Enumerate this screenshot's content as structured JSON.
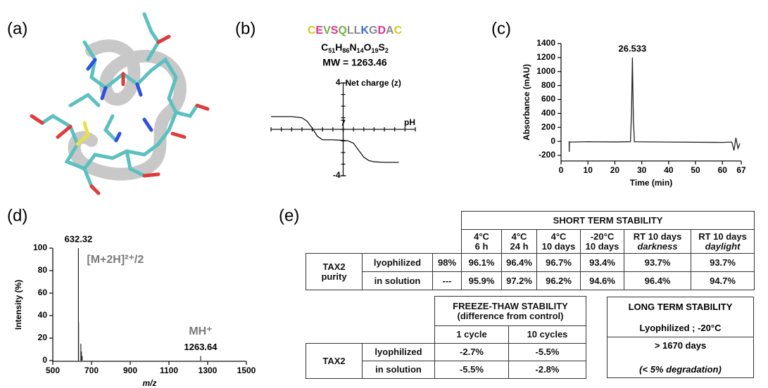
{
  "panel_labels": [
    "(a)",
    "(b)",
    "(c)",
    "(d)",
    "(e)"
  ],
  "sequence": [
    {
      "letter": "C",
      "color": "#d6c81c"
    },
    {
      "letter": "E",
      "color": "#e0308f"
    },
    {
      "letter": "V",
      "color": "#6cb33f"
    },
    {
      "letter": "S",
      "color": "#e0308f"
    },
    {
      "letter": "Q",
      "color": "#6cb33f"
    },
    {
      "letter": "L",
      "color": "#8a8a8a"
    },
    {
      "letter": "L",
      "color": "#8a8a8a"
    },
    {
      "letter": "K",
      "color": "#3a6fd0"
    },
    {
      "letter": "G",
      "color": "#8a8a8a"
    },
    {
      "letter": "D",
      "color": "#e0308f"
    },
    {
      "letter": "A",
      "color": "#8a8a8a"
    },
    {
      "letter": "C",
      "color": "#d6c81c"
    }
  ],
  "formula": [
    {
      "element": "C",
      "count": 51
    },
    {
      "element": "H",
      "count": 86
    },
    {
      "element": "N",
      "count": 14
    },
    {
      "element": "O",
      "count": 19
    },
    {
      "element": "S",
      "count": 2
    }
  ],
  "mw": "MW = 1263.46",
  "chart_data": [
    {
      "type": "line",
      "y_label": "Net charge (z)",
      "x_label": "pH",
      "xlim": [
        0,
        14
      ],
      "ylim": [
        -4,
        4
      ],
      "xticks": [
        7
      ],
      "yticks": [
        4,
        -4
      ],
      "x": [
        0,
        2,
        3,
        3.5,
        4,
        4.5,
        5,
        6,
        7,
        7.5,
        8,
        8.5,
        9,
        9.5,
        10,
        11,
        12.4
      ],
      "values": [
        1.1,
        1.1,
        1.0,
        0.7,
        0.1,
        -0.6,
        -0.9,
        -0.9,
        -0.95,
        -1.0,
        -1.2,
        -1.8,
        -2.4,
        -2.7,
        -2.8,
        -2.85,
        -2.85
      ],
      "color": "#111111"
    },
    {
      "type": "line",
      "y_label": "Absorbance (mAU)",
      "x_label": "Time (min)",
      "xlim": [
        0,
        67
      ],
      "ylim": [
        -200,
        1400
      ],
      "xticks": [
        0,
        10,
        20,
        30,
        40,
        50,
        60,
        67
      ],
      "yticks": [
        -200,
        0,
        200,
        400,
        600,
        800,
        1000,
        1200,
        1400
      ],
      "x": [
        3,
        3.05,
        3.1,
        10,
        20,
        25.8,
        26.2,
        26.533,
        26.9,
        27.3,
        40,
        60,
        63.5,
        64.3,
        65,
        65.8,
        66.5
      ],
      "values": [
        0,
        -150,
        -10,
        -5,
        -8,
        -5,
        400,
        1200,
        300,
        -5,
        -10,
        -15,
        -10,
        -130,
        50,
        -100,
        -30
      ],
      "peak_label": "26.533",
      "color": "#222222"
    },
    {
      "type": "stem",
      "y_label": "Intensity (%)",
      "x_label": "m/z",
      "xlim": [
        500,
        1500
      ],
      "ylim": [
        0,
        100
      ],
      "xticks": [
        500,
        700,
        900,
        1100,
        1300,
        1500
      ],
      "yticks": [
        0,
        20,
        40,
        60,
        80,
        100
      ],
      "x": [
        632.32,
        633.3,
        645,
        648,
        652,
        1263.64
      ],
      "values": [
        100,
        34,
        15,
        8,
        4,
        4
      ],
      "peak_labels": [
        "632.32",
        "1263.64"
      ],
      "ion_labels": [
        "[M+2H]²⁺/2",
        "MH⁺"
      ],
      "color": "#222222"
    }
  ],
  "short_term": {
    "title": "SHORT TERM STABILITY",
    "columns": [
      [
        "4°C",
        "6 h"
      ],
      [
        "4°C",
        "24 h"
      ],
      [
        "4°C",
        "10 days"
      ],
      [
        "-20°C",
        "10 days"
      ],
      [
        "RT 10 days",
        "darkness"
      ],
      [
        "RT 10 days",
        "daylight"
      ]
    ],
    "row_group": [
      "TAX2",
      "purity"
    ],
    "rows": [
      [
        "lyophilized",
        "98%",
        "96.1%",
        "96.4%",
        "96.7%",
        "93.4%",
        "93.7%",
        "93.7%"
      ],
      [
        "in solution",
        "---",
        "95.9%",
        "97.2%",
        "96.2%",
        "94.6%",
        "96.4%",
        "94.7%"
      ]
    ]
  },
  "freeze_thaw": {
    "title": [
      "FREEZE-THAW STABILITY",
      "(difference from control)"
    ],
    "columns": [
      "1 cycle",
      "10 cycles"
    ],
    "row_group": "TAX2",
    "rows": [
      [
        "lyophilized",
        "-2.7%",
        "-5.5%"
      ],
      [
        "in solution",
        "-5.5%",
        "-2.8%"
      ]
    ]
  },
  "long_term": {
    "title": [
      "LONG TERM STABILITY",
      "Lyophilized ; -20°C"
    ],
    "body": [
      "> 1670 days",
      "(< 5% degradation)"
    ]
  }
}
